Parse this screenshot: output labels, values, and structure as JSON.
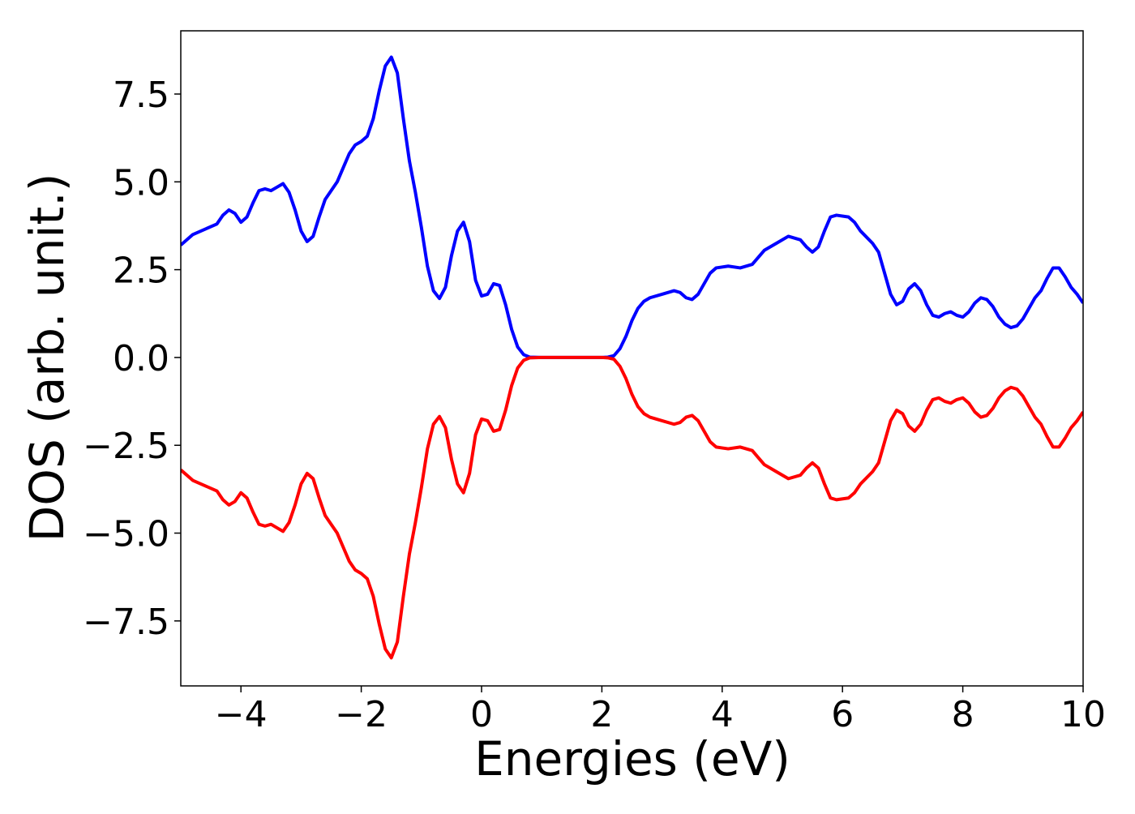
{
  "chart_data": {
    "type": "line",
    "xlabel": "Energies (eV)",
    "ylabel": "DOS (arb. unit.)",
    "x": [
      -5,
      -4.8,
      -4.6,
      -4.4,
      -4.3,
      -4.2,
      -4.1,
      -4.0,
      -3.9,
      -3.8,
      -3.7,
      -3.6,
      -3.5,
      -3.4,
      -3.3,
      -3.2,
      -3.1,
      -3.0,
      -2.9,
      -2.8,
      -2.7,
      -2.6,
      -2.5,
      -2.4,
      -2.3,
      -2.2,
      -2.1,
      -2.0,
      -1.9,
      -1.8,
      -1.7,
      -1.6,
      -1.5,
      -1.4,
      -1.3,
      -1.2,
      -1.1,
      -1.0,
      -0.9,
      -0.8,
      -0.7,
      -0.6,
      -0.5,
      -0.4,
      -0.3,
      -0.2,
      -0.1,
      0.0,
      0.1,
      0.2,
      0.3,
      0.4,
      0.5,
      0.6,
      0.7,
      0.8,
      1.0,
      1.5,
      2.0,
      2.1,
      2.2,
      2.3,
      2.4,
      2.5,
      2.6,
      2.7,
      2.8,
      3.0,
      3.2,
      3.3,
      3.4,
      3.5,
      3.6,
      3.7,
      3.8,
      3.9,
      4.1,
      4.3,
      4.5,
      4.6,
      4.7,
      4.9,
      5.1,
      5.3,
      5.4,
      5.5,
      5.6,
      5.7,
      5.8,
      5.9,
      6.1,
      6.2,
      6.3,
      6.5,
      6.6,
      6.7,
      6.8,
      6.9,
      7.0,
      7.1,
      7.2,
      7.3,
      7.4,
      7.5,
      7.6,
      7.7,
      7.8,
      7.9,
      8.0,
      8.1,
      8.2,
      8.3,
      8.4,
      8.5,
      8.6,
      8.7,
      8.8,
      8.9,
      9.0,
      9.1,
      9.2,
      9.3,
      9.4,
      9.5,
      9.6,
      9.7,
      9.8,
      9.9,
      10.0
    ],
    "series": [
      {
        "color": "#0000ff",
        "values": [
          3.2,
          3.5,
          3.65,
          3.8,
          4.05,
          4.2,
          4.1,
          3.85,
          4.0,
          4.4,
          4.75,
          4.8,
          4.75,
          4.85,
          4.95,
          4.7,
          4.2,
          3.6,
          3.3,
          3.45,
          4.0,
          4.5,
          4.75,
          5.0,
          5.4,
          5.8,
          6.05,
          6.15,
          6.3,
          6.8,
          7.6,
          8.3,
          8.55,
          8.1,
          6.8,
          5.6,
          4.7,
          3.7,
          2.6,
          1.9,
          1.68,
          2.0,
          2.9,
          3.6,
          3.85,
          3.3,
          2.2,
          1.75,
          1.8,
          2.1,
          2.05,
          1.5,
          0.8,
          0.3,
          0.08,
          0.01,
          0,
          0,
          0,
          0.01,
          0.05,
          0.25,
          0.6,
          1.05,
          1.4,
          1.6,
          1.7,
          1.8,
          1.9,
          1.85,
          1.7,
          1.65,
          1.8,
          2.1,
          2.4,
          2.55,
          2.6,
          2.55,
          2.65,
          2.85,
          3.05,
          3.25,
          3.45,
          3.35,
          3.15,
          3.0,
          3.15,
          3.6,
          4.0,
          4.05,
          4.0,
          3.85,
          3.6,
          3.25,
          3.0,
          2.4,
          1.8,
          1.5,
          1.6,
          1.95,
          2.1,
          1.9,
          1.5,
          1.2,
          1.15,
          1.25,
          1.3,
          1.2,
          1.15,
          1.3,
          1.55,
          1.7,
          1.65,
          1.45,
          1.15,
          0.95,
          0.85,
          0.9,
          1.1,
          1.4,
          1.7,
          1.9,
          2.25,
          2.55,
          2.55,
          2.3,
          2.0,
          1.8,
          1.55
        ]
      },
      {
        "color": "#ff0000",
        "values": [
          -3.2,
          -3.5,
          -3.65,
          -3.8,
          -4.05,
          -4.2,
          -4.1,
          -3.85,
          -4.0,
          -4.4,
          -4.75,
          -4.8,
          -4.75,
          -4.85,
          -4.95,
          -4.7,
          -4.2,
          -3.6,
          -3.3,
          -3.45,
          -4.0,
          -4.5,
          -4.75,
          -5.0,
          -5.4,
          -5.8,
          -6.05,
          -6.15,
          -6.3,
          -6.8,
          -7.6,
          -8.3,
          -8.55,
          -8.1,
          -6.8,
          -5.6,
          -4.7,
          -3.7,
          -2.6,
          -1.9,
          -1.68,
          -2.0,
          -2.9,
          -3.6,
          -3.85,
          -3.3,
          -2.2,
          -1.75,
          -1.8,
          -2.1,
          -2.05,
          -1.5,
          -0.8,
          -0.3,
          -0.08,
          -0.01,
          0,
          0,
          0,
          -0.01,
          -0.05,
          -0.25,
          -0.6,
          -1.05,
          -1.4,
          -1.6,
          -1.7,
          -1.8,
          -1.9,
          -1.85,
          -1.7,
          -1.65,
          -1.8,
          -2.1,
          -2.4,
          -2.55,
          -2.6,
          -2.55,
          -2.65,
          -2.85,
          -3.05,
          -3.25,
          -3.45,
          -3.35,
          -3.15,
          -3.0,
          -3.15,
          -3.6,
          -4.0,
          -4.05,
          -4.0,
          -3.85,
          -3.6,
          -3.25,
          -3.0,
          -2.4,
          -1.8,
          -1.5,
          -1.6,
          -1.95,
          -2.1,
          -1.9,
          -1.5,
          -1.2,
          -1.15,
          -1.25,
          -1.3,
          -1.2,
          -1.15,
          -1.3,
          -1.55,
          -1.7,
          -1.65,
          -1.45,
          -1.15,
          -0.95,
          -0.85,
          -0.9,
          -1.1,
          -1.4,
          -1.7,
          -1.9,
          -2.25,
          -2.55,
          -2.55,
          -2.3,
          -2.0,
          -1.8,
          -1.55
        ]
      }
    ],
    "xlim": [
      -5,
      10
    ],
    "xticks": [
      {
        "value": -4,
        "label": "−4"
      },
      {
        "value": -2,
        "label": "−2"
      },
      0,
      2,
      4,
      6,
      8,
      10
    ],
    "ylim": [
      -9.35,
      9.3
    ],
    "yticks": [
      {
        "value": -7.5,
        "label": "−7.5"
      },
      {
        "value": -5,
        "label": "−5.0"
      },
      {
        "value": -2.5,
        "label": "−2.5"
      },
      {
        "value": 0,
        "label": "0.0"
      },
      {
        "value": 2.5,
        "label": "2.5"
      },
      {
        "value": 5,
        "label": "5.0"
      },
      {
        "value": 7.5,
        "label": "7.5"
      }
    ],
    "grid": false
  }
}
